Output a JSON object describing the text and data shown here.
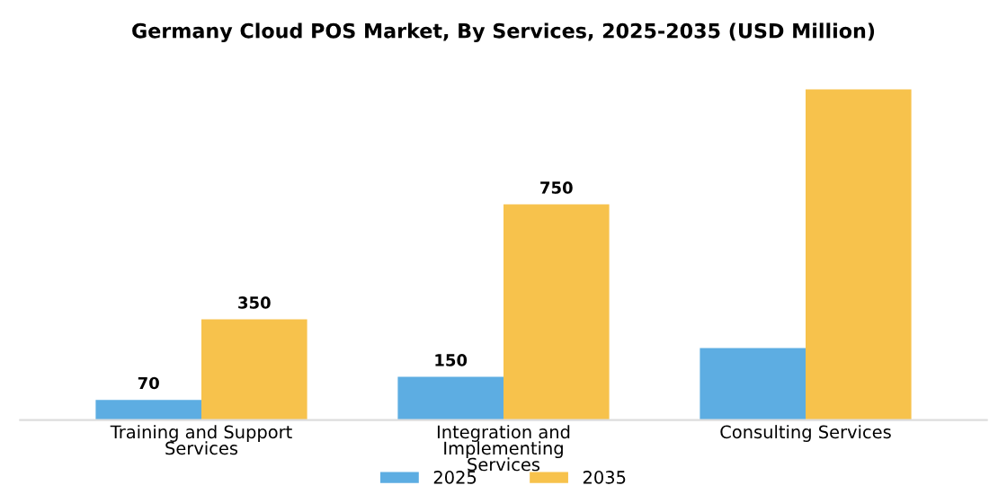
{
  "chart_data": {
    "type": "bar",
    "title": "Germany Cloud POS Market, By Services, 2025-2035 (USD Million)",
    "categories": [
      "Training and Support\nServices",
      "Integration and\nImplementing\nServices",
      "Consulting Services"
    ],
    "series": [
      {
        "name": "2025",
        "color": "#5dade2",
        "values": [
          70,
          150,
          250
        ],
        "value_labels": [
          "70",
          "150",
          null
        ]
      },
      {
        "name": "2035",
        "color": "#f7c24c",
        "values": [
          350,
          750,
          1150
        ],
        "value_labels": [
          "350",
          "750",
          null
        ]
      }
    ],
    "legend": "bottom",
    "grid": false
  }
}
